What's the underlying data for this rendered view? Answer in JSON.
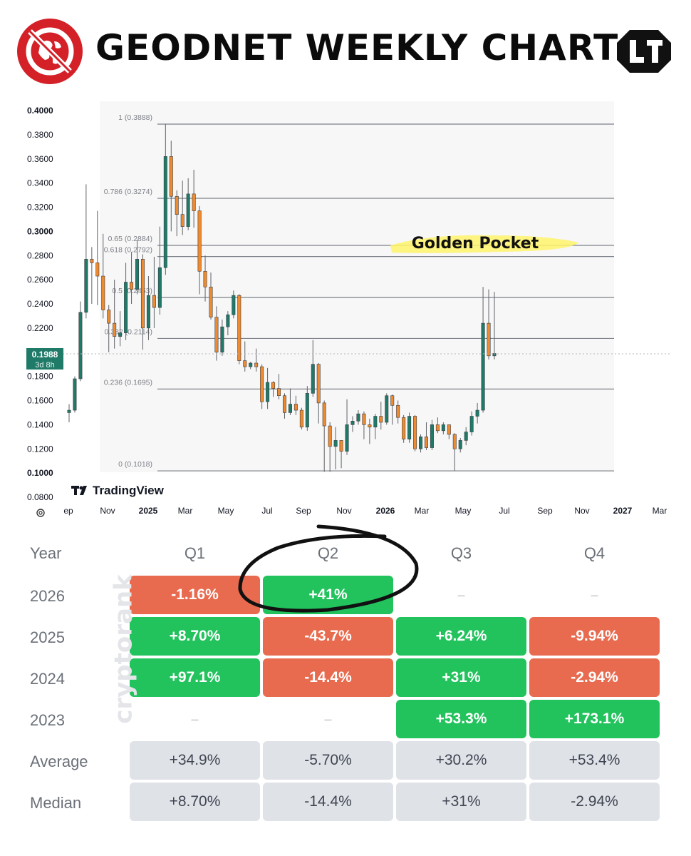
{
  "header": {
    "title": "GEODNET WEEKLY CHART",
    "left_logo_icon": "globe-forbidden-icon",
    "right_logo_icon": "brand-monogram-icon",
    "accent": "#d42027"
  },
  "chart_data": {
    "type": "candlestick",
    "title": "",
    "y_axis": {
      "ylim": [
        0.08,
        0.4
      ],
      "ticks": [
        "0.4000",
        "0.3800",
        "0.3600",
        "0.3400",
        "0.3200",
        "0.3000",
        "0.2800",
        "0.2600",
        "0.2400",
        "0.2200",
        "0.2000",
        "0.1800",
        "0.1600",
        "0.1400",
        "0.1200",
        "0.1000",
        "0.0800"
      ]
    },
    "x_axis": {
      "ticks": [
        "ep",
        "Nov",
        "2025",
        "Mar",
        "May",
        "Jul",
        "Sep",
        "Nov",
        "2026",
        "Mar",
        "May",
        "Jul",
        "Sep",
        "Nov",
        "2027",
        "Mar"
      ]
    },
    "current_price": {
      "value": "0.1988",
      "countdown": "3d 8h"
    },
    "fib_levels": [
      {
        "label": "1 (0.3888)",
        "value": 0.3888
      },
      {
        "label": "0.786 (0.3274)",
        "value": 0.3274
      },
      {
        "label": "0.65 (0.2884)",
        "value": 0.2884
      },
      {
        "label": "0.618 (0.2792)",
        "value": 0.2792
      },
      {
        "label": "0.5 (0.2453)",
        "value": 0.2453
      },
      {
        "label": "0.382 (0.2114)",
        "value": 0.2114
      },
      {
        "label": "0.236 (0.1695)",
        "value": 0.1695
      },
      {
        "label": "0 (0.1018)",
        "value": 0.1018
      }
    ],
    "annotation": "Golden Pocket",
    "watermark": "TradingView",
    "up_color": "#1f7a68",
    "down_color": "#ef8a2e",
    "candles": [
      [
        0.15,
        0.152,
        0.142,
        0.157
      ],
      [
        0.152,
        0.178,
        0.15,
        0.18
      ],
      [
        0.178,
        0.233,
        0.176,
        0.242
      ],
      [
        0.233,
        0.277,
        0.228,
        0.339
      ],
      [
        0.277,
        0.274,
        0.24,
        0.287
      ],
      [
        0.274,
        0.263,
        0.239,
        0.317
      ],
      [
        0.263,
        0.235,
        0.228,
        0.298
      ],
      [
        0.235,
        0.224,
        0.2,
        0.239
      ],
      [
        0.224,
        0.213,
        0.203,
        0.26
      ],
      [
        0.213,
        0.216,
        0.205,
        0.234
      ],
      [
        0.216,
        0.258,
        0.21,
        0.274
      ],
      [
        0.258,
        0.252,
        0.24,
        0.283
      ],
      [
        0.252,
        0.277,
        0.248,
        0.293
      ],
      [
        0.277,
        0.22,
        0.202,
        0.281
      ],
      [
        0.22,
        0.247,
        0.21,
        0.263
      ],
      [
        0.247,
        0.237,
        0.22,
        0.279
      ],
      [
        0.237,
        0.27,
        0.231,
        0.304
      ],
      [
        0.27,
        0.362,
        0.264,
        0.389
      ],
      [
        0.362,
        0.329,
        0.3,
        0.375
      ],
      [
        0.329,
        0.314,
        0.296,
        0.334
      ],
      [
        0.314,
        0.304,
        0.297,
        0.342
      ],
      [
        0.304,
        0.331,
        0.301,
        0.344
      ],
      [
        0.331,
        0.317,
        0.303,
        0.351
      ],
      [
        0.317,
        0.267,
        0.248,
        0.321
      ],
      [
        0.267,
        0.254,
        0.242,
        0.28
      ],
      [
        0.254,
        0.229,
        0.227,
        0.266
      ],
      [
        0.229,
        0.2,
        0.193,
        0.238
      ],
      [
        0.2,
        0.221,
        0.197,
        0.227
      ],
      [
        0.221,
        0.231,
        0.214,
        0.234
      ],
      [
        0.231,
        0.247,
        0.228,
        0.251
      ],
      [
        0.247,
        0.193,
        0.19,
        0.248
      ],
      [
        0.193,
        0.188,
        0.184,
        0.209
      ],
      [
        0.188,
        0.191,
        0.186,
        0.192
      ],
      [
        0.191,
        0.188,
        0.184,
        0.203
      ],
      [
        0.188,
        0.159,
        0.153,
        0.19
      ],
      [
        0.159,
        0.175,
        0.153,
        0.187
      ],
      [
        0.175,
        0.17,
        0.163,
        0.176
      ],
      [
        0.17,
        0.164,
        0.161,
        0.182
      ],
      [
        0.164,
        0.15,
        0.145,
        0.166
      ],
      [
        0.15,
        0.157,
        0.148,
        0.17
      ],
      [
        0.157,
        0.152,
        0.148,
        0.164
      ],
      [
        0.152,
        0.138,
        0.136,
        0.154
      ],
      [
        0.138,
        0.166,
        0.135,
        0.172
      ],
      [
        0.166,
        0.19,
        0.163,
        0.21
      ],
      [
        0.19,
        0.158,
        0.141,
        0.191
      ],
      [
        0.158,
        0.139,
        0.101,
        0.16
      ],
      [
        0.139,
        0.122,
        0.101,
        0.142
      ],
      [
        0.122,
        0.127,
        0.103,
        0.138
      ],
      [
        0.127,
        0.118,
        0.104,
        0.124
      ],
      [
        0.118,
        0.14,
        0.115,
        0.161
      ],
      [
        0.14,
        0.143,
        0.134,
        0.147
      ],
      [
        0.143,
        0.149,
        0.14,
        0.152
      ],
      [
        0.149,
        0.14,
        0.128,
        0.151
      ],
      [
        0.14,
        0.138,
        0.124,
        0.145
      ],
      [
        0.138,
        0.147,
        0.128,
        0.149
      ],
      [
        0.147,
        0.142,
        0.136,
        0.159
      ],
      [
        0.142,
        0.164,
        0.14,
        0.166
      ],
      [
        0.164,
        0.156,
        0.14,
        0.165
      ],
      [
        0.156,
        0.146,
        0.141,
        0.16
      ],
      [
        0.146,
        0.128,
        0.125,
        0.148
      ],
      [
        0.128,
        0.147,
        0.125,
        0.15
      ],
      [
        0.147,
        0.12,
        0.118,
        0.148
      ],
      [
        0.12,
        0.13,
        0.117,
        0.132
      ],
      [
        0.13,
        0.121,
        0.119,
        0.142
      ],
      [
        0.121,
        0.14,
        0.119,
        0.144
      ],
      [
        0.14,
        0.135,
        0.133,
        0.146
      ],
      [
        0.135,
        0.14,
        0.132,
        0.142
      ],
      [
        0.14,
        0.132,
        0.128,
        0.138
      ],
      [
        0.132,
        0.12,
        0.102,
        0.133
      ],
      [
        0.12,
        0.127,
        0.117,
        0.129
      ],
      [
        0.127,
        0.134,
        0.123,
        0.138
      ],
      [
        0.134,
        0.147,
        0.131,
        0.151
      ],
      [
        0.147,
        0.152,
        0.141,
        0.158
      ],
      [
        0.152,
        0.224,
        0.15,
        0.254
      ],
      [
        0.224,
        0.197,
        0.194,
        0.252
      ],
      [
        0.197,
        0.199,
        0.194,
        0.25
      ]
    ]
  },
  "table": {
    "headers": [
      "Year",
      "Q1",
      "Q2",
      "Q3",
      "Q4"
    ],
    "rows": [
      {
        "label": "2026",
        "cells": [
          {
            "v": "-1.16%",
            "t": "neg"
          },
          {
            "v": "+41%",
            "t": "pos"
          },
          {
            "v": "–",
            "t": "empty"
          },
          {
            "v": "–",
            "t": "empty"
          }
        ]
      },
      {
        "label": "2025",
        "cells": [
          {
            "v": "+8.70%",
            "t": "pos"
          },
          {
            "v": "-43.7%",
            "t": "neg"
          },
          {
            "v": "+6.24%",
            "t": "pos"
          },
          {
            "v": "-9.94%",
            "t": "neg"
          }
        ]
      },
      {
        "label": "2024",
        "cells": [
          {
            "v": "+97.1%",
            "t": "pos"
          },
          {
            "v": "-14.4%",
            "t": "neg"
          },
          {
            "v": "+31%",
            "t": "pos"
          },
          {
            "v": "-2.94%",
            "t": "neg"
          }
        ]
      },
      {
        "label": "2023",
        "cells": [
          {
            "v": "–",
            "t": "empty"
          },
          {
            "v": "–",
            "t": "empty"
          },
          {
            "v": "+53.3%",
            "t": "pos"
          },
          {
            "v": "+173.1%",
            "t": "pos"
          }
        ]
      },
      {
        "label": "Average",
        "cells": [
          {
            "v": "+34.9%",
            "t": "neu"
          },
          {
            "v": "-5.70%",
            "t": "neu"
          },
          {
            "v": "+30.2%",
            "t": "neu"
          },
          {
            "v": "+53.4%",
            "t": "neu"
          }
        ]
      },
      {
        "label": "Median",
        "cells": [
          {
            "v": "+8.70%",
            "t": "neu"
          },
          {
            "v": "-14.4%",
            "t": "neu"
          },
          {
            "v": "+31%",
            "t": "neu"
          },
          {
            "v": "-2.94%",
            "t": "neu"
          }
        ]
      }
    ],
    "watermark": "cryptorank",
    "highlight_icon": "hand-drawn-circle-icon"
  }
}
